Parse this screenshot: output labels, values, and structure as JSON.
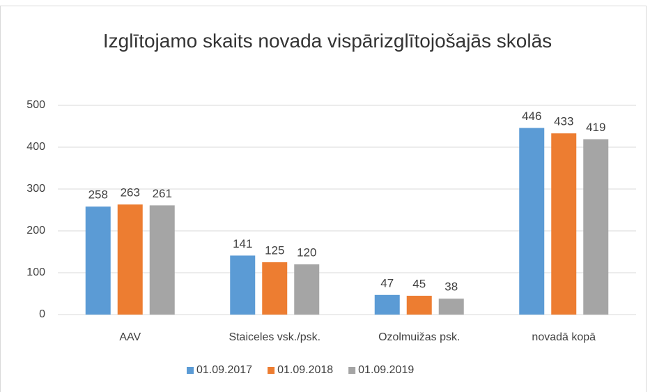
{
  "chart_data": {
    "type": "bar",
    "title": "Izglītojamo skaits novada vispārizglītojošajās skolās",
    "categories": [
      "AAV",
      "Staiceles vsk./psk.",
      "Ozolmuižas psk.",
      "novadā kopā"
    ],
    "series": [
      {
        "name": "01.09.2017",
        "color": "#5b9bd5",
        "values": [
          258,
          141,
          47,
          446
        ]
      },
      {
        "name": "01.09.2018",
        "color": "#ed7d31",
        "values": [
          263,
          125,
          45,
          433
        ]
      },
      {
        "name": "01.09.2019",
        "color": "#a5a5a5",
        "values": [
          261,
          120,
          38,
          419
        ]
      }
    ],
    "ylim": [
      0,
      500
    ],
    "yticks": [
      0,
      100,
      200,
      300,
      400,
      500
    ],
    "grid": true,
    "legend": "bottom"
  }
}
